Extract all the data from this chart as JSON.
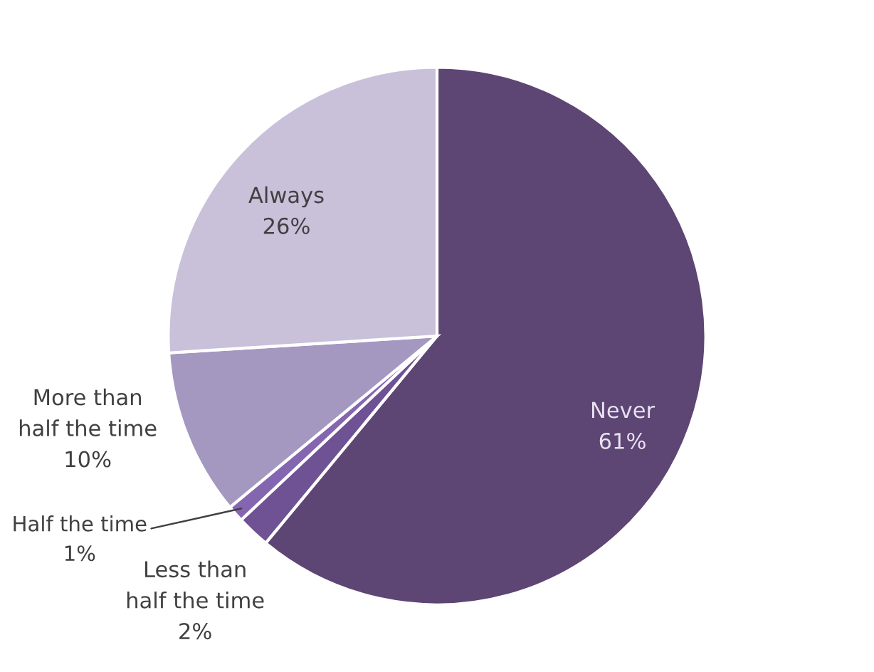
{
  "chart_data": {
    "type": "pie",
    "categories": [
      "Never",
      "Less than\nhalf the time",
      "Half the time",
      "More than\nhalf the time",
      "Always"
    ],
    "values": [
      61,
      2,
      1,
      10,
      26
    ],
    "value_labels": [
      "61%",
      "2%",
      "1%",
      "10%",
      "26%"
    ],
    "colors": [
      "#5d4574",
      "#6e5294",
      "#8466b0",
      "#a497c0",
      "#c9c0da"
    ],
    "legend": false
  }
}
